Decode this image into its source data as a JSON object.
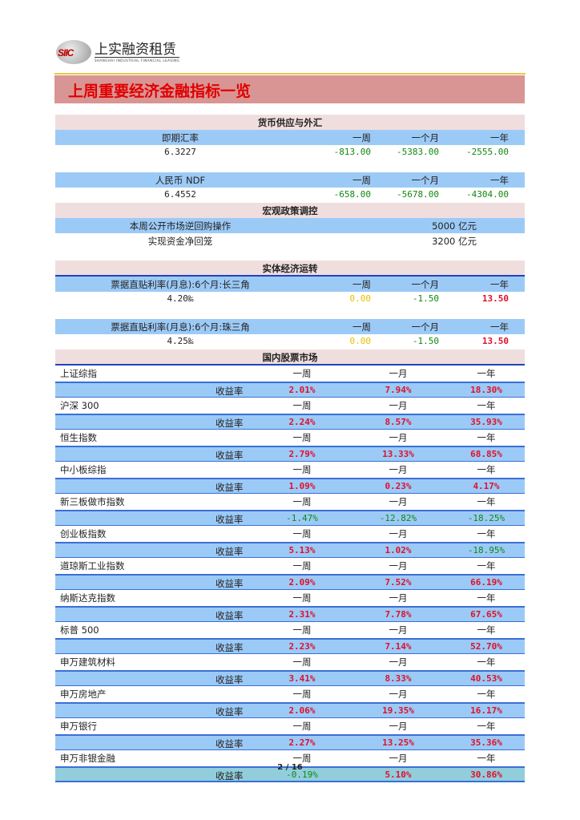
{
  "logo": {
    "cn": "上实融资租赁",
    "en": "SHANGHAI INDUSTRIAL FINANCIAL LEASING",
    "mark": "SIIC"
  },
  "title": "上周重要经济金融指标一览",
  "colors": {
    "up": "#e0102a",
    "down": "#118811",
    "flat": "#e8c000",
    "header": "#f0dede",
    "row_blue": "#9ccaf7",
    "title_bar": "#d99594"
  },
  "money": {
    "heading": "货币供应与外汇",
    "blocks": [
      {
        "label": "即期汇率",
        "cols": [
          "一周",
          "一个月",
          "一年"
        ],
        "value": "6.3227",
        "changes": [
          "-813.00",
          "-5383.00",
          "-2555.00"
        ],
        "tones": [
          "green",
          "green",
          "green"
        ]
      },
      {
        "label": "人民币 NDF",
        "cols": [
          "一周",
          "一个月",
          "一年"
        ],
        "value": "6.4552",
        "changes": [
          "-658.00",
          "-5678.00",
          "-4304.00"
        ],
        "tones": [
          "green",
          "green",
          "green"
        ]
      }
    ]
  },
  "macro": {
    "heading": "宏观政策调控",
    "rows": [
      {
        "label": "本周公开市场逆回购操作",
        "value": "5000 亿元"
      },
      {
        "label": "实现资金净回笼",
        "value": "3200 亿元"
      }
    ]
  },
  "economy": {
    "heading": "实体经济运转",
    "blocks": [
      {
        "label": "票据直贴利率(月息):6个月:长三角",
        "cols": [
          "一周",
          "一个月",
          "一年"
        ],
        "value": "4.20‰",
        "changes": [
          "0.00",
          "-1.50",
          "13.50"
        ],
        "tones": [
          "yellow",
          "green",
          "red"
        ]
      },
      {
        "label": "票据直贴利率(月息):6个月:珠三角",
        "cols": [
          "一周",
          "一个月",
          "一年"
        ],
        "value": "4.25‰",
        "changes": [
          "0.00",
          "-1.50",
          "13.50"
        ],
        "tones": [
          "yellow",
          "green",
          "red"
        ]
      }
    ]
  },
  "stocks": {
    "heading": "国内股票市场",
    "periods": [
      "一周",
      "一月",
      "一年"
    ],
    "rate_label": "收益率",
    "items": [
      {
        "name": "上证综指",
        "returns": [
          "2.01%",
          "7.94%",
          "18.30%"
        ]
      },
      {
        "name": "沪深 300",
        "returns": [
          "2.24%",
          "8.57%",
          "35.93%"
        ]
      },
      {
        "name": "恒生指数",
        "returns": [
          "2.79%",
          "13.33%",
          "68.85%"
        ]
      },
      {
        "name": "中小板综指",
        "returns": [
          "1.09%",
          "0.23%",
          "4.17%"
        ]
      },
      {
        "name": "新三板做市指数",
        "returns": [
          "-1.47%",
          "-12.82%",
          "-18.25%"
        ]
      },
      {
        "name": "创业板指数",
        "returns": [
          "5.13%",
          "1.02%",
          "-18.95%"
        ]
      },
      {
        "name": "道琼斯工业指数",
        "returns": [
          "2.09%",
          "7.52%",
          "66.19%"
        ]
      },
      {
        "name": "纳斯达克指数",
        "returns": [
          "2.31%",
          "7.78%",
          "67.65%"
        ]
      },
      {
        "name": "标普 500",
        "returns": [
          "2.23%",
          "7.14%",
          "52.70%"
        ]
      },
      {
        "name": "申万建筑材料",
        "returns": [
          "3.41%",
          "8.33%",
          "40.53%"
        ]
      },
      {
        "name": "申万房地产",
        "returns": [
          "2.06%",
          "19.35%",
          "16.17%"
        ]
      },
      {
        "name": "申万银行",
        "returns": [
          "2.27%",
          "13.25%",
          "35.36%"
        ]
      },
      {
        "name": "申万非银金融",
        "returns": [
          "-0.19%",
          "5.10%",
          "30.86%"
        ]
      }
    ]
  },
  "footer": {
    "page": "2 / 16"
  }
}
